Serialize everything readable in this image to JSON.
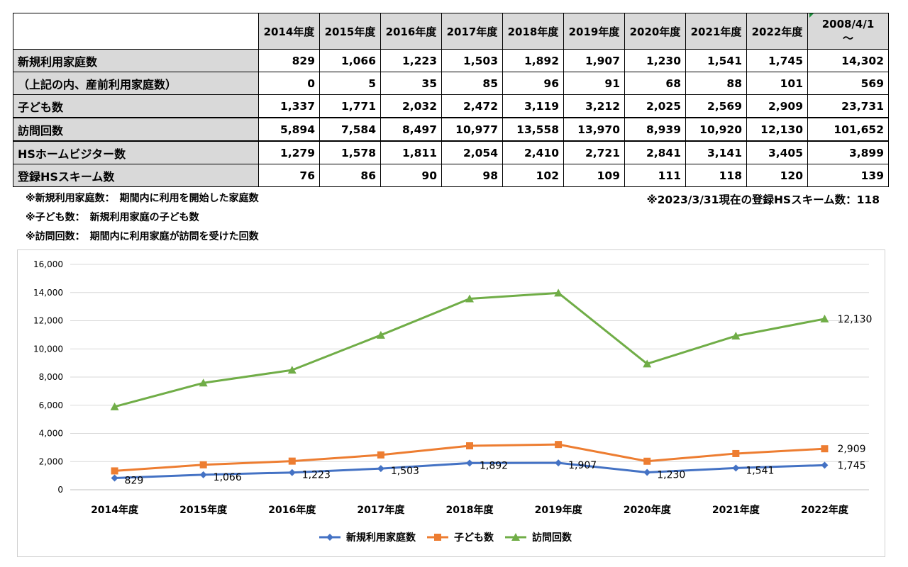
{
  "table": {
    "headers": [
      "2014年度",
      "2015年度",
      "2016年度",
      "2017年度",
      "2018年度",
      "2019年度",
      "2020年度",
      "2021年度",
      "2022年度"
    ],
    "since_header": {
      "line1": "2008/4/1",
      "line2": "〜"
    },
    "rows": [
      {
        "label": "新規利用家庭数",
        "values": [
          "829",
          "1,066",
          "1,223",
          "1,503",
          "1,892",
          "1,907",
          "1,230",
          "1,541",
          "1,745",
          "14,302"
        ]
      },
      {
        "label": "（上記の内、産前利用家庭数）",
        "values": [
          "0",
          "5",
          "35",
          "85",
          "96",
          "91",
          "68",
          "88",
          "101",
          "569"
        ]
      },
      {
        "label": "子ども数",
        "values": [
          "1,337",
          "1,771",
          "2,032",
          "2,472",
          "3,119",
          "3,212",
          "2,025",
          "2,569",
          "2,909",
          "23,731"
        ]
      },
      {
        "label": "訪問回数",
        "values": [
          "5,894",
          "7,584",
          "8,497",
          "10,977",
          "13,558",
          "13,970",
          "8,939",
          "10,920",
          "12,130",
          "101,652"
        ]
      },
      {
        "label": "HSホームビジター数",
        "values": [
          "1,279",
          "1,578",
          "1,811",
          "2,054",
          "2,410",
          "2,721",
          "2,841",
          "3,141",
          "3,405",
          "3,899"
        ]
      },
      {
        "label": "登録HSスキーム数",
        "values": [
          "76",
          "86",
          "90",
          "98",
          "102",
          "109",
          "111",
          "118",
          "120",
          "139"
        ]
      }
    ]
  },
  "notes": {
    "note1": "※新規利用家庭数：　期間内に利用を開始した家庭数",
    "note2": "※子ども数：　新規利用家庭の子ども数",
    "note3": "※訪問回数：　期間内に利用家庭が訪問を受けた回数",
    "note_right": "※2023/3/31現在の登録HSスキーム数：118"
  },
  "chart_data": {
    "type": "line",
    "categories": [
      "2014年度",
      "2015年度",
      "2016年度",
      "2017年度",
      "2018年度",
      "2019年度",
      "2020年度",
      "2021年度",
      "2022年度"
    ],
    "ylim": [
      0,
      16000
    ],
    "yticks": [
      "0",
      "2,000",
      "4,000",
      "6,000",
      "8,000",
      "10,000",
      "12,000",
      "14,000",
      "16,000"
    ],
    "grid": true,
    "legend_position": "bottom",
    "series": [
      {
        "name": "新規利用家庭数",
        "color": "#4472c4",
        "marker": "diamond",
        "values": [
          829,
          1066,
          1223,
          1503,
          1892,
          1907,
          1230,
          1541,
          1745
        ],
        "labels": [
          "829",
          "1,066",
          "1,223",
          "1,503",
          "1,892",
          "1,907",
          "1,230",
          "1,541",
          "1,745"
        ],
        "label_mode": "all"
      },
      {
        "name": "子ども数",
        "color": "#ed7d31",
        "marker": "square",
        "values": [
          1337,
          1771,
          2032,
          2472,
          3119,
          3212,
          2025,
          2569,
          2909
        ],
        "labels": [
          "",
          "",
          "",
          "",
          "",
          "",
          "",
          "",
          "2,909"
        ],
        "label_mode": "last"
      },
      {
        "name": "訪問回数",
        "color": "#70ad47",
        "marker": "triangle",
        "values": [
          5894,
          7584,
          8497,
          10977,
          13558,
          13970,
          8939,
          10920,
          12130
        ],
        "labels": [
          "",
          "",
          "",
          "",
          "",
          "",
          "",
          "",
          "12,130"
        ],
        "label_mode": "last"
      }
    ]
  }
}
